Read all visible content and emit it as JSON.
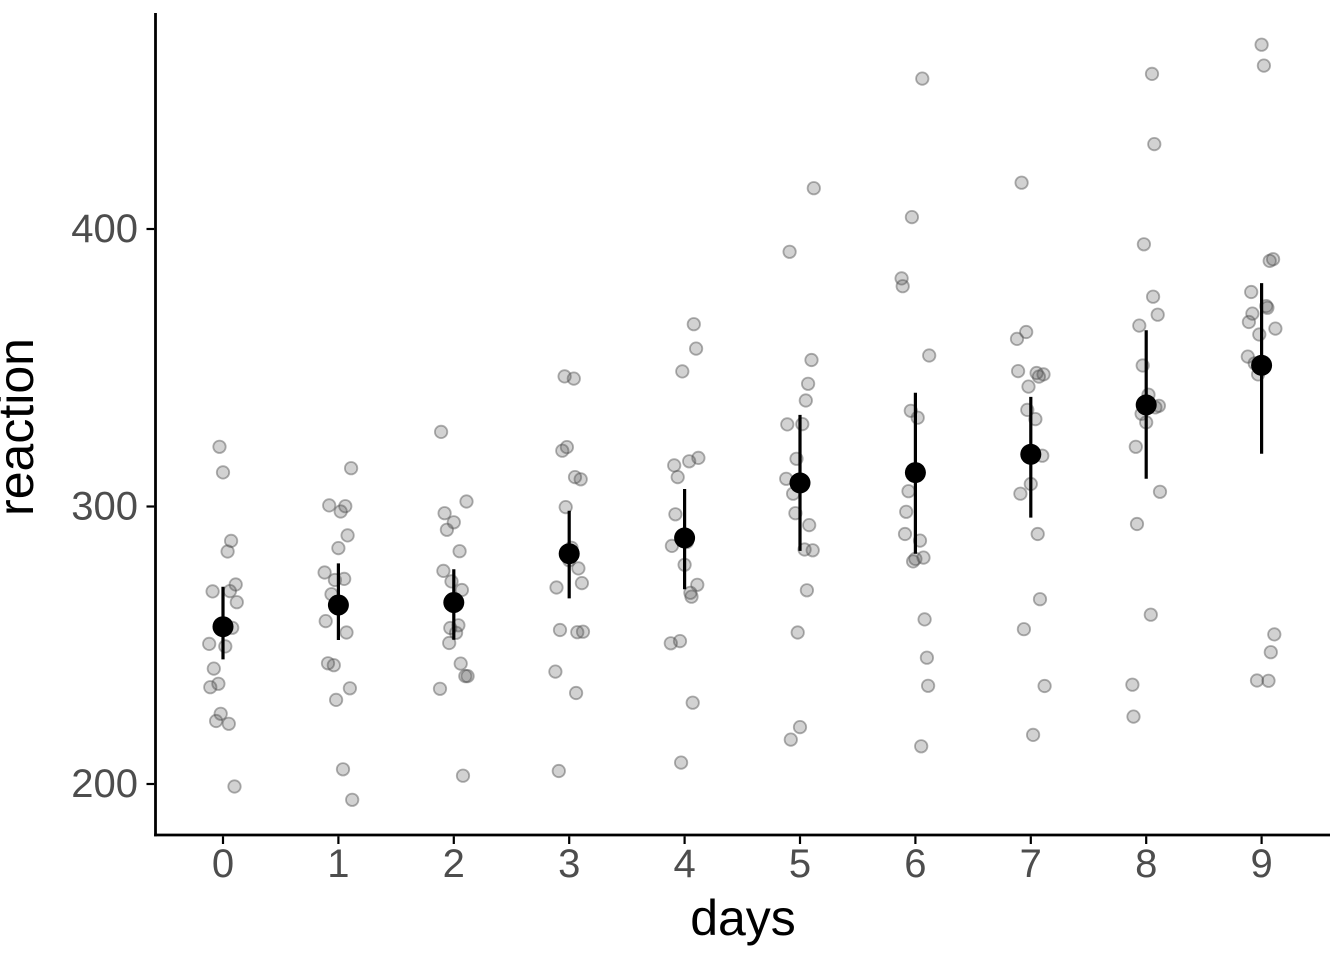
{
  "chart_data": {
    "type": "scatter",
    "title": "",
    "xlabel": "days",
    "ylabel": "reaction",
    "x_tick_labels": [
      "0",
      "1",
      "2",
      "3",
      "4",
      "5",
      "6",
      "7",
      "8",
      "9"
    ],
    "y_tick_labels": [
      "200",
      "300",
      "400"
    ],
    "y_tick_values": [
      200,
      300,
      400
    ],
    "days": [
      0,
      1,
      2,
      3,
      4,
      5,
      6,
      7,
      8,
      9
    ],
    "xlim": [
      -0.6,
      9.65
    ],
    "ylim": [
      182,
      478
    ],
    "grid": false,
    "legend": "none",
    "raw_points_by_day": [
      [
        249.6,
        222.7,
        199.1,
        321.5,
        287.6,
        234.9,
        283.8,
        265.5,
        241.6,
        312.3,
        236.1,
        256.3,
        250.5,
        221.7,
        271.9,
        225.3,
        269.4,
        269.5
      ],
      [
        258.7,
        205.3,
        194.3,
        300.4,
        285.0,
        242.8,
        289.6,
        276.2,
        273.9,
        313.8,
        230.3,
        243.5,
        300.1,
        298.2,
        268.4,
        234.5,
        273.5,
        254.6
      ],
      [
        250.8,
        203.0,
        234.3,
        283.9,
        301.8,
        273.0,
        276.8,
        243.4,
        254.5,
        291.6,
        238.9,
        256.2,
        269.9,
        326.9,
        257.2,
        238.9,
        297.6,
        294.3
      ],
      [
        321.4,
        204.7,
        232.8,
        285.1,
        320.1,
        309.8,
        299.8,
        254.7,
        270.8,
        346.1,
        254.9,
        255.5,
        280.6,
        346.9,
        277.7,
        240.5,
        310.6,
        272.4
      ],
      [
        356.9,
        207.7,
        229.3,
        285.8,
        316.3,
        317.5,
        297.2,
        279.0,
        251.5,
        365.7,
        250.7,
        268.9,
        271.8,
        348.7,
        314.8,
        267.5,
        287.2,
        310.6
      ],
      [
        414.7,
        216.0,
        220.5,
        297.6,
        293.3,
        310.0,
        338.2,
        284.2,
        254.6,
        391.8,
        269.8,
        329.7,
        304.6,
        352.8,
        317.2,
        344.2,
        329.6,
        284.5
      ],
      [
        382.2,
        213.6,
        235.4,
        280.2,
        290.1,
        454.2,
        332.0,
        305.5,
        245.5,
        404.3,
        281.6,
        379.4,
        287.7,
        354.4,
        298.1,
        281.1,
        334.5,
        259.3
      ],
      [
        290.1,
        217.7,
        255.8,
        318.3,
        334.8,
        346.8,
        348.8,
        331.5,
        235.3,
        416.7,
        308.1,
        362.9,
        266.6,
        360.4,
        348.1,
        347.6,
        343.2,
        304.6
      ],
      [
        430.6,
        224.3,
        261.0,
        305.3,
        293.7,
        330.3,
        333.4,
        335.7,
        235.8,
        455.9,
        336.3,
        394.5,
        321.5,
        375.6,
        340.3,
        365.2,
        369.1,
        350.8
      ],
      [
        466.4,
        237.3,
        247.5,
        354.0,
        371.6,
        253.9,
        362.0,
        377.3,
        237.2,
        458.9,
        351.6,
        389.1,
        347.6,
        388.5,
        366.5,
        372.2,
        364.1,
        369.5
      ]
    ],
    "summary": {
      "mean": [
        256.7,
        264.5,
        265.4,
        283.0,
        288.7,
        308.5,
        312.2,
        318.8,
        336.6,
        350.9
      ],
      "ci_low": [
        244.9,
        251.9,
        252.0,
        266.9,
        270.2,
        284.0,
        283.0,
        296.0,
        310.0,
        319.0
      ],
      "ci_high": [
        271.1,
        279.5,
        277.4,
        298.5,
        306.3,
        333.0,
        341.0,
        339.5,
        363.5,
        380.5
      ]
    },
    "jitter_offsets": [
      0.02,
      -0.06,
      0.1,
      -0.03,
      0.07,
      -0.11,
      0.04,
      0.12,
      -0.08,
      0.0,
      -0.04,
      0.08,
      -0.12,
      0.05,
      0.11,
      -0.02,
      -0.09,
      0.06
    ],
    "colors": {
      "raw_point_fill": "rgba(77,77,77,0.25)",
      "raw_point_stroke": "rgba(77,77,77,0.45)",
      "mean_point": "#000000",
      "error_bar": "#000000",
      "axis_line": "#000000",
      "tick_label": "#4d4d4d",
      "background": "#ffffff"
    }
  }
}
